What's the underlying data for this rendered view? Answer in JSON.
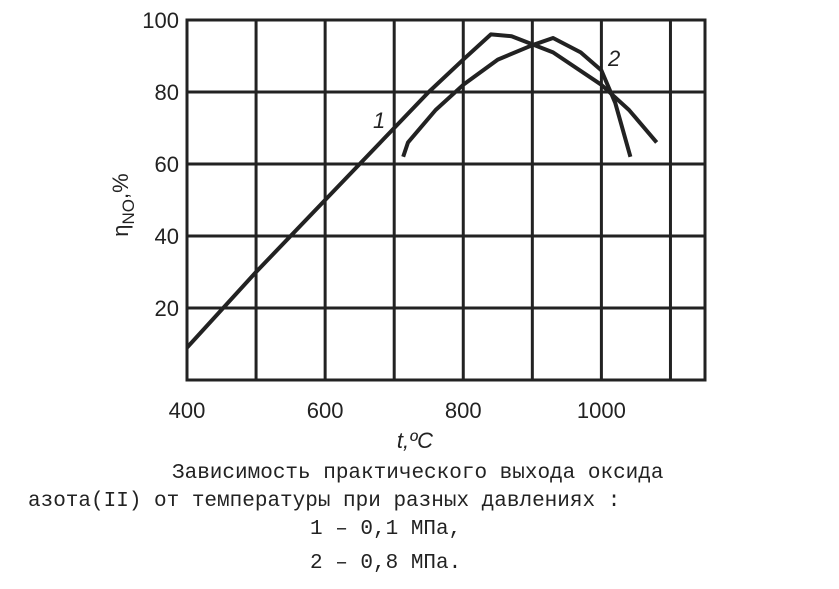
{
  "chart_data": {
    "type": "line",
    "ylabel": "η",
    "ylabel_sub": "NO",
    "ylabel_unit": ",%",
    "xlabel": "t,ºC",
    "xlim": [
      400,
      1150
    ],
    "ylim": [
      0,
      100
    ],
    "xticks": [
      400,
      600,
      800,
      1000
    ],
    "xgrid": [
      500,
      600,
      700,
      800,
      900,
      1000,
      1100
    ],
    "yticks": [
      20,
      40,
      60,
      80,
      100
    ],
    "grid": true,
    "series": [
      {
        "name": "1",
        "color": "#222222",
        "x": [
          400,
          500,
          600,
          700,
          750,
          800,
          840,
          870,
          930,
          1000,
          1040,
          1080
        ],
        "values": [
          9,
          30,
          50,
          70,
          80,
          89,
          96,
          95.5,
          91,
          82,
          75,
          66
        ]
      },
      {
        "name": "2",
        "color": "#222222",
        "x": [
          713,
          720,
          760,
          800,
          850,
          900,
          930,
          970,
          1000,
          1020,
          1042
        ],
        "values": [
          62,
          66,
          75,
          82,
          89,
          93,
          95,
          91,
          86,
          77,
          62
        ]
      }
    ],
    "caption": [
      "Зависимость практического выхода оксида",
      "азота(II) от температуры при разных давлениях :",
      "1 – 0,1 МПа,",
      "2 – 0,8 МПа."
    ]
  }
}
